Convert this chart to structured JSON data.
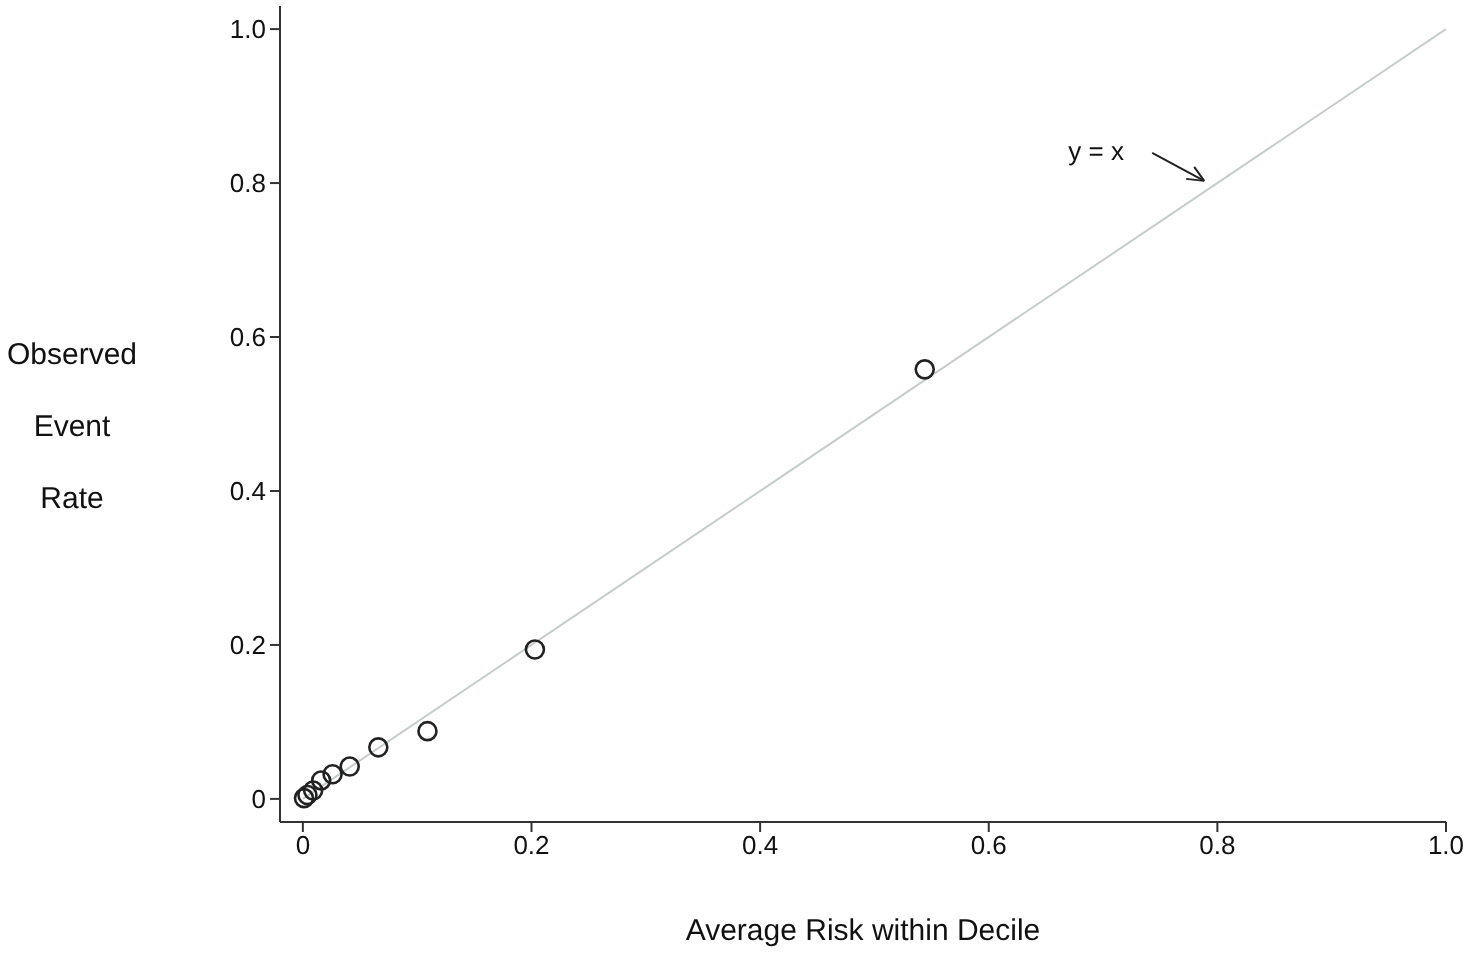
{
  "chart_data": {
    "type": "scatter",
    "xlabel": "Average Risk within Decile",
    "ylabel": "Observed Event Rate",
    "xlim": [
      -0.02,
      1.0
    ],
    "ylim": [
      -0.03,
      1.03
    ],
    "xticks": [
      0,
      0.2,
      0.4,
      0.6,
      0.8,
      {
        "value": 1.0,
        "label": "1.0"
      }
    ],
    "yticks": [
      0,
      0.2,
      0.4,
      0.6,
      0.8,
      {
        "value": 1.0,
        "label": "1.0"
      }
    ],
    "grid": false,
    "marker": "circle",
    "series": [
      {
        "type": "line",
        "marker": "none",
        "color": "#c4cccc",
        "x": [
          0,
          1
        ],
        "values": [
          0,
          1
        ]
      },
      {
        "color": "#222222",
        "x": [
          0.001,
          0.004,
          0.009,
          0.016,
          0.026,
          0.041,
          0.066,
          0.109,
          0.203,
          0.544
        ],
        "values": [
          0.001,
          0.005,
          0.011,
          0.024,
          0.032,
          0.042,
          0.067,
          0.088,
          0.194,
          0.558
        ]
      }
    ],
    "annotations": [
      "y = x"
    ]
  }
}
